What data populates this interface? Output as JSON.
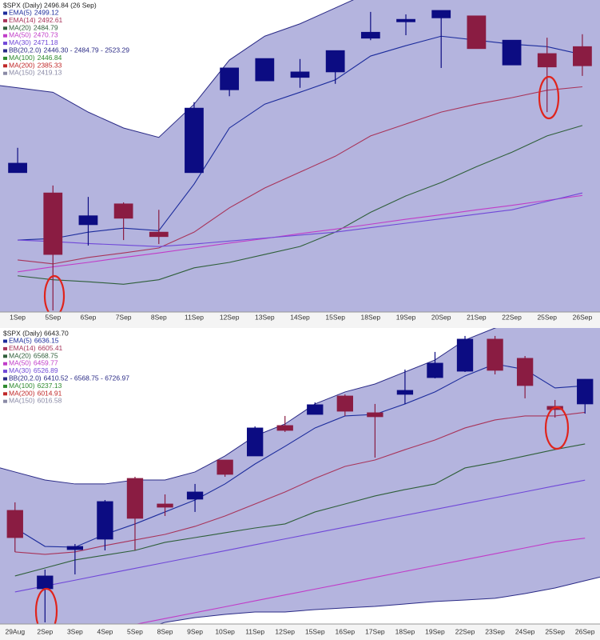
{
  "chart_data": [
    {
      "type": "candlestick",
      "title": "$SPX (Daily) 2496.84 (26 Sep)",
      "categories": [
        "1Sep",
        "5Sep",
        "6Sep",
        "7Sep",
        "8Sep",
        "11Sep",
        "12Sep",
        "13Sep",
        "14Sep",
        "15Sep",
        "18Sep",
        "19Sep",
        "20Sep",
        "21Sep",
        "22Sep",
        "25Sep",
        "26Sep"
      ],
      "open": [
        2475.3,
        2471.2,
        2464.8,
        2469.0,
        2463.3,
        2475.3,
        2492.0,
        2493.8,
        2494.5,
        2495.6,
        2502.4,
        2505.7,
        2506.5,
        2506.9,
        2497.0,
        2499.3,
        2500.7
      ],
      "high": [
        2480.3,
        2472.7,
        2470.4,
        2469.3,
        2467.8,
        2489.5,
        2496.4,
        2498.3,
        2498.2,
        2499.9,
        2507.7,
        2507.2,
        2508.0,
        2506.9,
        2502.0,
        2502.5,
        2503.2
      ],
      "low": [
        2475.3,
        2447.5,
        2460.6,
        2461.7,
        2460.9,
        2475.3,
        2490.7,
        2493.8,
        2492.4,
        2493.2,
        2502.0,
        2503.0,
        2496.4,
        2500.3,
        2497.0,
        2487.5,
        2494.8
      ],
      "close": [
        2477.2,
        2458.8,
        2466.6,
        2466.1,
        2462.4,
        2488.3,
        2496.4,
        2498.3,
        2495.6,
        2499.9,
        2503.6,
        2506.2,
        2508.0,
        2500.3,
        2502.0,
        2496.6,
        2496.84
      ],
      "candle_colors": [
        "#0c0c82",
        "#8a1c42",
        "#0c0c82",
        "#8a1c42",
        "#8a1c42",
        "#0c0c82",
        "#0c0c82",
        "#0c0c82",
        "#0c0c82",
        "#0c0c82",
        "#0c0c82",
        "#0c0c82",
        "#0c0c82",
        "#8a1c42",
        "#0c0c82",
        "#8a1c42",
        "#8a1c42"
      ],
      "ylim": [
        2447.2,
        2510.1
      ],
      "band": {
        "name": "BB(20,2.0)",
        "label": "2446.30 - 2484.79 - 2523.29",
        "color": "#2a2a86",
        "fill": "#b4b4de",
        "upper": [
          2492.4,
          2491.5,
          2487.5,
          2484.3,
          2482.4,
          2489.1,
          2498.0,
          2502.8,
          2505.3,
          2508.5,
          2511.7,
          2514.1,
          2515.7,
          2518.2,
          2520.6,
          2522.2,
          2523.3
        ],
        "lower": [
          2436.0,
          2435.5,
          2435.0,
          2434.8,
          2435.0,
          2436.0,
          2437.5,
          2439.0,
          2440.0,
          2441.0,
          2442.0,
          2443.0,
          2444.0,
          2444.8,
          2445.4,
          2446.0,
          2446.3
        ]
      },
      "indicators": [
        {
          "name": "EMA(5)",
          "label": "2499.12",
          "color": "#1c2c9c",
          "values": [
            2461.7,
            2462.0,
            2463.3,
            2464.1,
            2463.6,
            2473.0,
            2484.3,
            2489.1,
            2491.5,
            2494.0,
            2498.8,
            2500.9,
            2502.8,
            2502.0,
            2501.2,
            2500.7,
            2499.1
          ]
        },
        {
          "name": "EMA(14)",
          "label": "2492.61",
          "color": "#a8345a",
          "values": [
            2457.7,
            2456.9,
            2458.2,
            2459.1,
            2460.1,
            2463.3,
            2468.2,
            2472.2,
            2475.4,
            2478.6,
            2482.7,
            2485.1,
            2487.5,
            2489.1,
            2490.4,
            2491.9,
            2492.6
          ]
        },
        {
          "name": "MA(20)",
          "label": "2484.79",
          "color": "#2f5f3a",
          "values": [
            2454.5,
            2453.7,
            2453.3,
            2452.8,
            2453.7,
            2456.1,
            2457.2,
            2458.8,
            2460.4,
            2463.3,
            2467.3,
            2470.6,
            2473.3,
            2476.5,
            2479.4,
            2482.7,
            2484.8
          ]
        },
        {
          "name": "MA(50)",
          "label": "2470.73",
          "color": "#c03cc8",
          "values": [
            2455.3,
            2456.3,
            2457.2,
            2458.2,
            2459.1,
            2460.1,
            2461.1,
            2462.0,
            2463.0,
            2463.9,
            2464.9,
            2465.9,
            2466.8,
            2467.8,
            2468.7,
            2469.7,
            2470.7
          ]
        },
        {
          "name": "MA(30)",
          "label": "2471.18",
          "color": "#7048d8",
          "values": [
            2461.7,
            2461.4,
            2461.0,
            2460.7,
            2460.4,
            2460.9,
            2461.5,
            2462.1,
            2462.7,
            2463.3,
            2464.2,
            2465.1,
            2466.0,
            2466.9,
            2467.8,
            2469.5,
            2471.2
          ]
        },
        {
          "name": "MA(100)",
          "label": "2446.84",
          "color": "#2e8a2e"
        },
        {
          "name": "MA(200)",
          "label": "2385.33",
          "color": "#c02828"
        },
        {
          "name": "MA(150)",
          "label": "2419.13",
          "color": "#8a8aa6"
        }
      ]
    },
    {
      "type": "candlestick",
      "title": "$SPX (Daily) 6643.70",
      "categories": [
        "29Aug",
        "2Sep",
        "3Sep",
        "4Sep",
        "5Sep",
        "8Sep",
        "9Sep",
        "10Sep",
        "11Sep",
        "12Sep",
        "15Sep",
        "16Sep",
        "17Sep",
        "18Sep",
        "19Sep",
        "22Sep",
        "23Sep",
        "24Sep",
        "25Sep",
        "26Sep"
      ],
      "open": [
        6491.9,
        6401.2,
        6446.5,
        6458.6,
        6528.9,
        6499.3,
        6504.9,
        6550.2,
        6554.9,
        6590.1,
        6603.0,
        6624.3,
        6604.9,
        6626.2,
        6645.6,
        6653.0,
        6690.1,
        6667.9,
        6612.3,
        6615.1
      ],
      "high": [
        6501.2,
        6423.4,
        6453.0,
        6503.9,
        6530.8,
        6510.4,
        6522.5,
        6550.2,
        6589.1,
        6601.2,
        6616.9,
        6626.2,
        6615.1,
        6654.9,
        6675.3,
        6693.8,
        6693.8,
        6670.6,
        6619.7,
        6643.8
      ],
      "low": [
        6443.8,
        6362.3,
        6417.8,
        6445.6,
        6445.6,
        6485.4,
        6490.1,
        6530.8,
        6554.9,
        6582.7,
        6603.0,
        6601.2,
        6553.0,
        6615.1,
        6644.7,
        6652.1,
        6649.3,
        6621.6,
        6599.3,
        6603.9
      ],
      "close": [
        6460.4,
        6416.0,
        6450.2,
        6502.1,
        6482.7,
        6495.6,
        6513.2,
        6533.6,
        6587.3,
        6584.5,
        6614.2,
        6606.7,
        6600.3,
        6630.8,
        6662.3,
        6690.1,
        6654.0,
        6636.4,
        6608.6,
        6643.7
      ],
      "candle_colors": [
        "#8a1c42",
        "#0c0c82",
        "#0c0c82",
        "#0c0c82",
        "#8a1c42",
        "#8a1c42",
        "#0c0c82",
        "#8a1c42",
        "#0c0c82",
        "#8a1c42",
        "#0c0c82",
        "#8a1c42",
        "#8a1c42",
        "#0c0c82",
        "#0c0c82",
        "#0c0c82",
        "#8a1c42",
        "#8a1c42",
        "#8a1c42",
        "#0c0c82"
      ],
      "ylim": [
        6360.4,
        6703.0
      ],
      "band": {
        "name": "BB(20,2.0)",
        "label": "6410.52 - 6568.75 - 6726.97",
        "color": "#2a2a86",
        "fill": "#b4b4de",
        "upper": [
          6536.4,
          6527.1,
          6522.5,
          6522.5,
          6527.1,
          6527.1,
          6536.4,
          6554.9,
          6578.0,
          6591.9,
          6615.1,
          6629.0,
          6638.2,
          6652.1,
          6666.0,
          6689.1,
          6703.0,
          6712.3,
          6719.7,
          6727.0
        ],
        "lower": [
          6355.8,
          6353.9,
          6353.0,
          6352.1,
          6351.2,
          6362.3,
          6367.8,
          6371.5,
          6374.3,
          6374.3,
          6377.1,
          6379.0,
          6380.8,
          6383.6,
          6386.4,
          6388.2,
          6390.1,
          6395.6,
          6402.1,
          6410.5
        ]
      },
      "indicators": [
        {
          "name": "EMA(5)",
          "label": "6636.15",
          "color": "#1c2c9c",
          "values": [
            6471.5,
            6450.2,
            6449.3,
            6464.1,
            6476.2,
            6490.1,
            6503.9,
            6522.5,
            6545.6,
            6566.0,
            6587.3,
            6601.2,
            6603.0,
            6615.1,
            6629.0,
            6647.5,
            6661.4,
            6654.9,
            6633.6,
            6636.2
          ]
        },
        {
          "name": "EMA(14)",
          "label": "6605.41",
          "color": "#a8345a",
          "values": [
            6443.8,
            6441.0,
            6443.8,
            6451.2,
            6457.7,
            6464.1,
            6473.4,
            6485.4,
            6499.3,
            6513.2,
            6528.9,
            6542.8,
            6550.2,
            6562.2,
            6573.4,
            6587.3,
            6596.6,
            6601.2,
            6601.2,
            6605.4
          ]
        },
        {
          "name": "MA(20)",
          "label": "6568.75",
          "color": "#2f5f3a",
          "values": [
            6416.0,
            6425.2,
            6434.5,
            6440.1,
            6445.6,
            6454.9,
            6460.4,
            6466.0,
            6471.5,
            6476.2,
            6490.1,
            6499.3,
            6508.6,
            6516.0,
            6522.5,
            6541.0,
            6547.5,
            6554.9,
            6562.3,
            6568.8
          ]
        },
        {
          "name": "MA(50)",
          "label": "6459.77",
          "color": "#c03cc8",
          "values": [
            6332.6,
            6339.4,
            6346.2,
            6353.1,
            6359.9,
            6366.7,
            6373.5,
            6380.3,
            6387.2,
            6394.0,
            6400.8,
            6407.6,
            6414.4,
            6421.3,
            6428.1,
            6434.9,
            6441.7,
            6448.5,
            6455.4,
            6459.8
          ]
        },
        {
          "name": "MA(30)",
          "label": "6526.89",
          "color": "#7048d8",
          "values": [
            6397.5,
            6404.3,
            6411.1,
            6418.0,
            6424.8,
            6431.6,
            6438.4,
            6445.2,
            6452.1,
            6458.9,
            6465.7,
            6472.5,
            6479.3,
            6486.2,
            6493.0,
            6499.8,
            6506.6,
            6513.4,
            6520.3,
            6526.9
          ]
        },
        {
          "name": "MA(100)",
          "label": "6237.13",
          "color": "#2e8a2e"
        },
        {
          "name": "MA(200)",
          "label": "6014.91",
          "color": "#c02828"
        },
        {
          "name": "MA(150)",
          "label": "6016.58",
          "color": "#8a8aa6"
        }
      ]
    }
  ]
}
